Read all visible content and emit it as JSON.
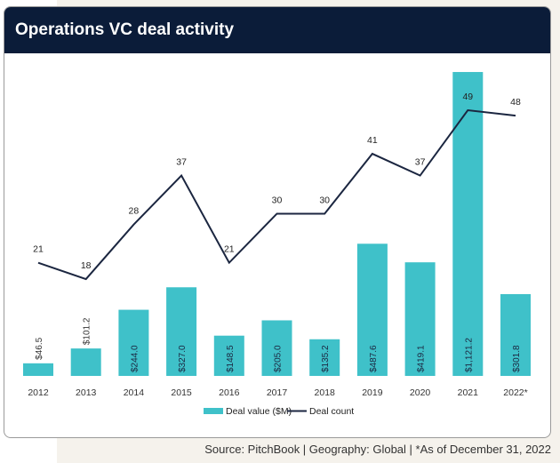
{
  "chart_data": {
    "type": "bar+line",
    "title": "Operations VC deal activity",
    "categories": [
      "2012",
      "2013",
      "2014",
      "2015",
      "2016",
      "2017",
      "2018",
      "2019",
      "2020",
      "2021",
      "2022*"
    ],
    "series": [
      {
        "name": "Deal value ($M)",
        "type": "bar",
        "color": "#3fc1c9",
        "values": [
          46.5,
          101.2,
          244.0,
          327.0,
          148.5,
          205.0,
          135.2,
          487.6,
          419.1,
          1121.2,
          301.8
        ],
        "labels": [
          "$46.5",
          "$101.2",
          "$244.0",
          "$327.0",
          "$148.5",
          "$205.0",
          "$135.2",
          "$487.6",
          "$419.1",
          "$1,121.2",
          "$301.8"
        ]
      },
      {
        "name": "Deal count",
        "type": "line",
        "color": "#1b2640",
        "values": [
          21,
          18,
          28,
          37,
          21,
          30,
          30,
          41,
          37,
          49,
          48
        ]
      }
    ],
    "legend": "bottom-center",
    "grid": false
  },
  "footer": {
    "source": "Source: PitchBook  |  Geography: Global  |  *As of December 31, 2022"
  }
}
